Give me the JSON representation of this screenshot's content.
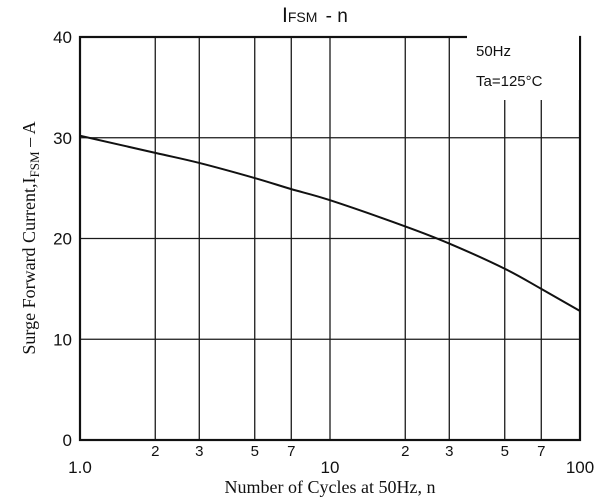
{
  "chart_data": {
    "type": "line",
    "title": {
      "main": "I",
      "sub": "FSM",
      "rest": " - n"
    },
    "xlabel": "Number of Cycles at 50Hz, n",
    "ylabel": {
      "main": "Surge Forward Current,I",
      "sub": "FSM",
      "rest": " – A"
    },
    "annotations": [
      "50Hz",
      "Ta=125°C"
    ],
    "x_scale": "log",
    "xlim": [
      1,
      100
    ],
    "ylim": [
      0,
      40
    ],
    "y_ticks": [
      "0",
      "10",
      "20",
      "30",
      "40"
    ],
    "x_major_ticks": [
      "1.0",
      "10",
      "100"
    ],
    "x_minor_ticks": [
      "2",
      "3",
      "5",
      "7",
      "2",
      "3",
      "5",
      "7"
    ],
    "grid": true,
    "series": [
      {
        "x": [
          1,
          2,
          3,
          5,
          7,
          10,
          20,
          30,
          50,
          70,
          100
        ],
        "y": [
          30.2,
          28.5,
          27.5,
          26.0,
          24.9,
          23.8,
          21.2,
          19.5,
          17.0,
          15.0,
          12.8
        ]
      }
    ]
  }
}
